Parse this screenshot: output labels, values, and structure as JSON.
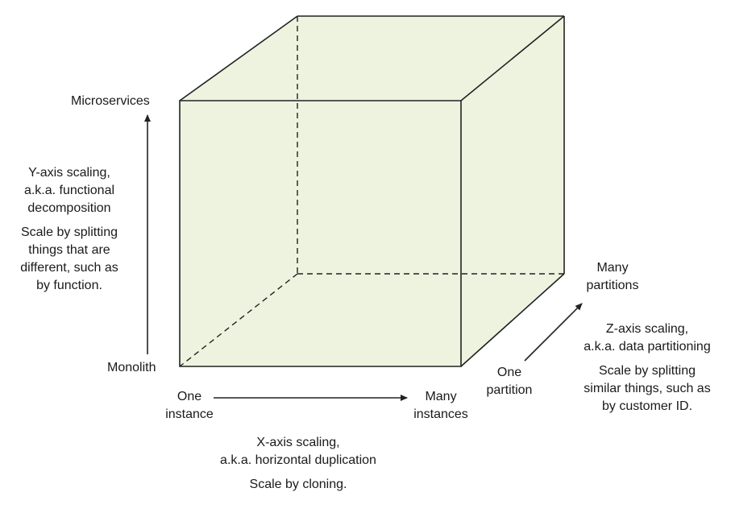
{
  "y_axis": {
    "top_label": "Microservices",
    "bottom_label": "Monolith",
    "title_line1": "Y-axis scaling,",
    "title_line2": "a.k.a. functional",
    "title_line3": "decomposition",
    "desc_line1": "Scale by splitting",
    "desc_line2": "things that are",
    "desc_line3": "different, such as",
    "desc_line4": "by function."
  },
  "x_axis": {
    "start_line1": "One",
    "start_line2": "instance",
    "end_line1": "Many",
    "end_line2": "instances",
    "title_line1": "X-axis scaling,",
    "title_line2": "a.k.a. horizontal duplication",
    "desc_line1": "Scale by cloning."
  },
  "z_axis": {
    "start_line1": "One",
    "start_line2": "partition",
    "end_line1": "Many",
    "end_line2": "partitions",
    "title_line1": "Z-axis scaling,",
    "title_line2": "a.k.a. data partitioning",
    "desc_line1": "Scale by splitting",
    "desc_line2": "similar things, such as",
    "desc_line3": "by customer ID."
  },
  "colors": {
    "cube_fill": "#eef3e0",
    "edge": "#222222"
  }
}
